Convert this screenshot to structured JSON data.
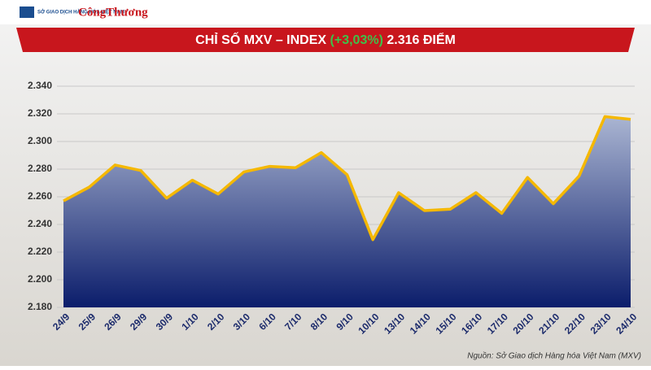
{
  "header": {
    "logo_mxv": "SỞ GIAO DỊCH HÀNG HÓA VIỆT NAM",
    "logo_ct": "CôngThương"
  },
  "chart_data": {
    "type": "area",
    "title": {
      "main": "CHỈ SỐ MXV – INDEX",
      "change": "(+3,03%)",
      "value": "2.316 ĐIỂM"
    },
    "categories": [
      "24/9",
      "25/9",
      "26/9",
      "29/9",
      "30/9",
      "1/10",
      "2/10",
      "3/10",
      "6/10",
      "7/10",
      "8/10",
      "9/10",
      "10/10",
      "13/10",
      "14/10",
      "15/10",
      "16/10",
      "17/10",
      "20/10",
      "21/10",
      "22/10",
      "23/10",
      "24/10"
    ],
    "values": [
      2257,
      2267,
      2283,
      2279,
      2259,
      2272,
      2262,
      2278,
      2282,
      2281,
      2292,
      2276,
      2229,
      2263,
      2250,
      2251,
      2263,
      2248,
      2274,
      2255,
      2275,
      2318,
      2316
    ],
    "line_color": "#f5b800",
    "fill_top": "#aab5d2",
    "fill_bottom": "#0b1d6b",
    "ylim": [
      2180,
      2340
    ],
    "yticks": [
      {
        "value": 2180,
        "label": "2.180"
      },
      {
        "value": 2200,
        "label": "2.200"
      },
      {
        "value": 2220,
        "label": "2.220"
      },
      {
        "value": 2240,
        "label": "2.240"
      },
      {
        "value": 2260,
        "label": "2.260"
      },
      {
        "value": 2280,
        "label": "2.280"
      },
      {
        "value": 2300,
        "label": "2.300"
      },
      {
        "value": 2320,
        "label": "2.320"
      },
      {
        "value": 2340,
        "label": "2.340"
      }
    ],
    "grid": true,
    "source": "Nguồn: Sở Giao dịch Hàng hóa Việt Nam (MXV)"
  }
}
